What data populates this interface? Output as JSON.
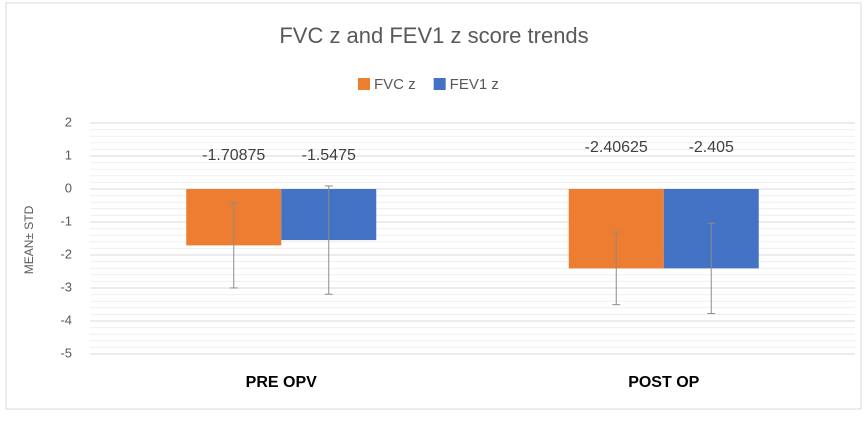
{
  "chart_data": {
    "type": "bar",
    "title": "FVC z and FEV1 z score trends",
    "y_label": "MEAN± STD",
    "categories": [
      "PRE OPV",
      "POST OP"
    ],
    "series": [
      {
        "name": "FVC z",
        "color": "#ed7d31",
        "values": [
          -1.70875,
          -2.40625
        ],
        "errors": [
          1.29,
          1.1
        ]
      },
      {
        "name": "FEV1 z",
        "color": "#4472c4",
        "values": [
          -1.5475,
          -2.405
        ],
        "errors": [
          1.64,
          1.37
        ]
      }
    ],
    "ylim": [
      -5,
      2
    ],
    "yticks": [
      -5,
      -4,
      -3,
      -2,
      -1,
      0,
      1,
      2
    ],
    "grid": true,
    "legend": "top"
  }
}
